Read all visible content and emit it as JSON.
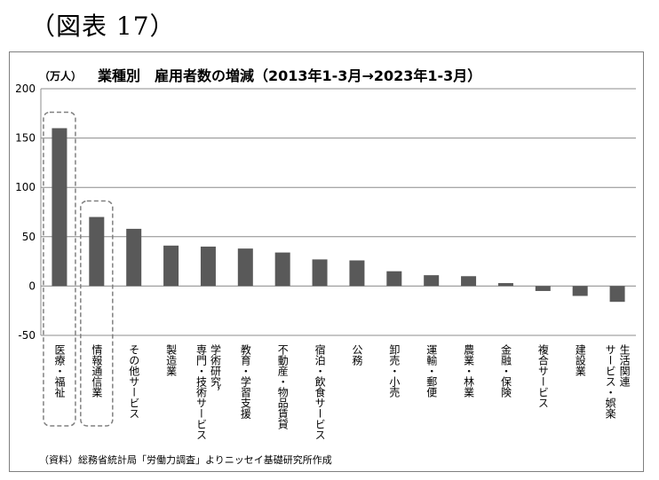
{
  "figure_label": "（図表 17）",
  "chart_data": {
    "type": "bar",
    "title": "業種別　雇用者数の増減（2013年1-3月→2023年1-3月）",
    "ylabel": "（万人）",
    "xlabel": "",
    "ylim": [
      -50,
      200
    ],
    "yticks": [
      200,
      150,
      100,
      50,
      0,
      -50
    ],
    "grid": true,
    "categories": [
      "医療・福祉",
      "情報通信業",
      "その他サービス",
      "製造業",
      "学術研究，専門・技術サービス",
      "教育・学習支援",
      "不動産・物品賃貸",
      "宿泊・飲食サービス",
      "公務",
      "卸売・小売",
      "運輸・郵便",
      "農業・林業",
      "金融・保険",
      "複合サービス",
      "建設業",
      "生活関連サービス・娯楽"
    ],
    "category_lines": [
      [
        "医療・福祉"
      ],
      [
        "情報通信業"
      ],
      [
        "その他サービス"
      ],
      [
        "製造業"
      ],
      [
        "学術研究，",
        "専門・技術サービス"
      ],
      [
        "教育・学習支援"
      ],
      [
        "不動産・物品賃貸"
      ],
      [
        "宿泊・飲食サービス"
      ],
      [
        "公務"
      ],
      [
        "卸売・小売"
      ],
      [
        "運輸・郵便"
      ],
      [
        "農業・林業"
      ],
      [
        "金融・保険"
      ],
      [
        "複合サービス"
      ],
      [
        "建設業"
      ],
      [
        "生活関連",
        "サービス・娯楽"
      ]
    ],
    "values": [
      160,
      70,
      58,
      41,
      40,
      38,
      34,
      27,
      26,
      15,
      11,
      10,
      3,
      -5,
      -10,
      -16
    ],
    "highlighted": [
      "医療・福祉",
      "情報通信業"
    ],
    "bar_color": "#595959",
    "source": "（資料）総務省統計局「労働力調査」よりニッセイ基礎研究所作成"
  }
}
